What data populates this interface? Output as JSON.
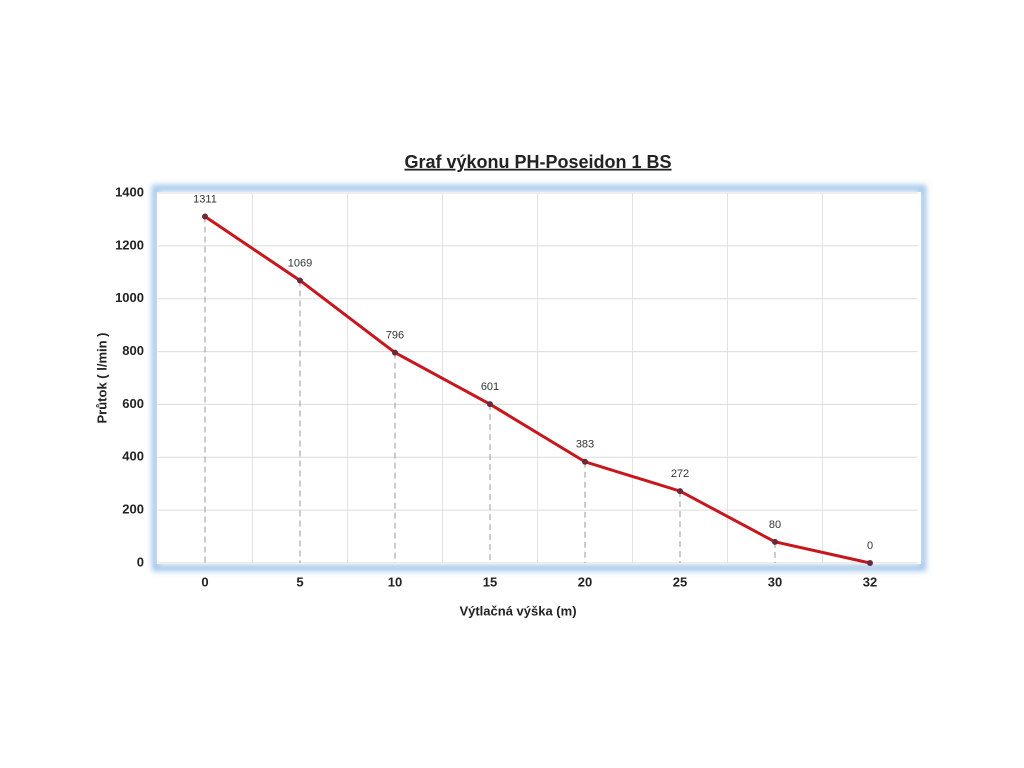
{
  "chart_data": {
    "type": "line",
    "title": "Graf výkonu PH-Poseidon 1 BS",
    "x_label": "Výtlačná výška (m)",
    "y_label": "Průtok  ( l/min )",
    "categories": [
      "0",
      "5",
      "10",
      "15",
      "20",
      "25",
      "30",
      "32"
    ],
    "values": [
      1311,
      1069,
      796,
      601,
      383,
      272,
      80,
      0
    ],
    "color": "#c8161d",
    "marker_color": "#6b2a3a",
    "ylim": [
      0,
      1400
    ],
    "yticks": [
      0,
      200,
      400,
      600,
      800,
      1000,
      1200,
      1400
    ],
    "grid": true
  }
}
